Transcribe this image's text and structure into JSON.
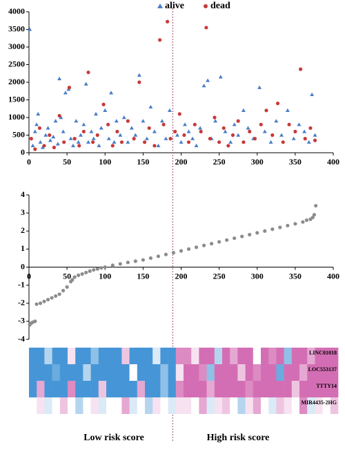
{
  "chart_data": [
    {
      "type": "scatter",
      "xlim": [
        0,
        400
      ],
      "xticks": [
        0,
        50,
        100,
        150,
        200,
        250,
        300,
        350,
        400
      ],
      "ylim": [
        0,
        4000
      ],
      "yticks": [
        0,
        500,
        1000,
        1500,
        2000,
        2500,
        3000,
        3500,
        4000
      ],
      "cutoff": 189,
      "legend": "top",
      "series": [
        {
          "name": "alive",
          "color": "#4a7ec8",
          "marker": "triangle",
          "x": [
            1,
            5,
            8,
            10,
            12,
            15,
            18,
            22,
            25,
            28,
            32,
            35,
            38,
            40,
            42,
            45,
            48,
            52,
            55,
            58,
            62,
            65,
            68,
            72,
            75,
            78,
            82,
            85,
            88,
            92,
            95,
            100,
            105,
            108,
            112,
            115,
            120,
            125,
            130,
            135,
            140,
            145,
            150,
            155,
            160,
            165,
            170,
            175,
            180,
            185,
            195,
            200,
            205,
            210,
            215,
            220,
            225,
            230,
            235,
            240,
            245,
            252,
            258,
            265,
            270,
            275,
            282,
            288,
            295,
            303,
            310,
            318,
            325,
            332,
            340,
            348,
            355,
            362,
            368,
            372,
            376
          ],
          "values": [
            3500,
            200,
            600,
            800,
            1100,
            300,
            150,
            500,
            700,
            350,
            450,
            900,
            250,
            2100,
            1000,
            600,
            1700,
            1800,
            400,
            200,
            900,
            300,
            500,
            800,
            1950,
            300,
            600,
            400,
            1100,
            200,
            700,
            1200,
            400,
            1700,
            300,
            900,
            500,
            1000,
            300,
            700,
            500,
            2200,
            900,
            400,
            1300,
            600,
            200,
            900,
            400,
            1200,
            500,
            300,
            800,
            600,
            400,
            200,
            700,
            1900,
            2050,
            400,
            900,
            2150,
            600,
            300,
            800,
            500,
            1200,
            700,
            400,
            1850,
            600,
            300,
            900,
            500,
            1200,
            400,
            800,
            600,
            300,
            1650,
            500
          ]
        },
        {
          "name": "dead",
          "color": "#c8393a",
          "marker": "circle",
          "x": [
            3,
            8,
            14,
            20,
            27,
            33,
            40,
            46,
            53,
            60,
            66,
            72,
            78,
            84,
            90,
            98,
            104,
            110,
            116,
            122,
            130,
            138,
            145,
            152,
            158,
            165,
            172,
            177,
            182,
            186,
            192,
            198,
            204,
            210,
            218,
            226,
            233,
            238,
            244,
            250,
            256,
            262,
            268,
            275,
            282,
            290,
            297,
            305,
            312,
            320,
            327,
            334,
            342,
            350,
            357,
            363,
            370,
            376
          ],
          "values": [
            400,
            100,
            700,
            200,
            500,
            150,
            1050,
            300,
            1850,
            400,
            200,
            600,
            2280,
            300,
            500,
            1370,
            800,
            200,
            600,
            300,
            900,
            400,
            2000,
            300,
            700,
            200,
            3200,
            800,
            3720,
            400,
            600,
            1100,
            500,
            300,
            800,
            600,
            3550,
            400,
            1000,
            300,
            700,
            200,
            500,
            900,
            300,
            600,
            400,
            800,
            1200,
            500,
            1400,
            300,
            800,
            600,
            2370,
            400,
            700,
            350
          ]
        }
      ]
    },
    {
      "type": "scatter",
      "xlim": [
        0,
        400
      ],
      "xticks": [
        0,
        50,
        100,
        150,
        200,
        250,
        300,
        350,
        400
      ],
      "ylim": [
        -4,
        4
      ],
      "yticks": [
        -4,
        -3,
        -2,
        -1,
        0,
        1,
        2,
        3,
        4
      ],
      "series": [
        {
          "color": "#8c8c8c",
          "x": [
            1,
            3,
            5,
            8,
            10,
            15,
            20,
            25,
            30,
            35,
            40,
            45,
            50,
            55,
            57,
            60,
            65,
            70,
            75,
            80,
            85,
            90,
            95,
            100,
            110,
            120,
            130,
            140,
            150,
            160,
            170,
            180,
            190,
            200,
            210,
            220,
            230,
            240,
            250,
            260,
            270,
            280,
            290,
            300,
            310,
            320,
            330,
            340,
            350,
            360,
            365,
            370,
            373,
            375,
            377
          ],
          "values": [
            -3.2,
            -3.1,
            -3.05,
            -3.0,
            -2.05,
            -2.0,
            -1.9,
            -1.8,
            -1.7,
            -1.6,
            -1.5,
            -1.3,
            -1.1,
            -0.8,
            -0.7,
            -0.55,
            -0.45,
            -0.38,
            -0.3,
            -0.22,
            -0.15,
            -0.1,
            -0.04,
            0.0,
            0.1,
            0.18,
            0.26,
            0.33,
            0.4,
            0.5,
            0.6,
            0.7,
            0.8,
            0.9,
            1.0,
            1.1,
            1.2,
            1.3,
            1.4,
            1.5,
            1.6,
            1.7,
            1.8,
            1.9,
            2.0,
            2.1,
            2.2,
            2.3,
            2.4,
            2.5,
            2.6,
            2.65,
            2.75,
            2.9,
            3.4
          ]
        }
      ]
    },
    {
      "type": "heatmap",
      "annotations": [
        "Low risk score",
        "High risk score"
      ],
      "rows": [
        {
          "name": "LINC01018",
          "values": [
            0,
            0,
            0.3,
            0,
            0,
            0.6,
            0,
            0,
            0.2,
            0,
            0,
            0,
            0.7,
            0,
            0,
            0,
            0.4,
            0,
            0,
            0.9,
            0.9,
            0.6,
            1,
            1,
            0.3,
            1,
            0.8,
            1,
            1,
            0.5,
            1,
            0.9,
            1,
            0.2,
            1,
            1,
            0.8,
            1,
            1,
            1
          ]
        },
        {
          "name": "LOC553137",
          "values": [
            0,
            0,
            0,
            0.1,
            0,
            0,
            0,
            0.3,
            0,
            0,
            0,
            0,
            0,
            0.5,
            0,
            0,
            0,
            0.2,
            0,
            0.6,
            1,
            1,
            0.9,
            0.2,
            1,
            1,
            1,
            0.7,
            1,
            0.9,
            1,
            1,
            0.1,
            1,
            1,
            0.8,
            1,
            1,
            1,
            1
          ]
        },
        {
          "name": "TTTY14",
          "values": [
            0,
            0.8,
            0,
            0,
            0,
            0.9,
            0,
            0,
            0,
            0.7,
            0,
            0,
            0,
            0,
            0.8,
            0,
            0,
            0.2,
            0,
            0.9,
            1,
            1,
            1,
            0.8,
            1,
            1,
            1,
            1,
            0.9,
            1,
            1,
            1,
            1,
            1,
            0.7,
            1,
            1,
            1,
            1,
            1
          ]
        },
        {
          "name": "MIR4435-2HG",
          "values": [
            0.5,
            0.6,
            0.4,
            0.5,
            0.7,
            0.5,
            0.3,
            0.5,
            0.6,
            0.4,
            0.5,
            0.5,
            0.8,
            0.4,
            0.5,
            0.3,
            0.6,
            0.5,
            0.4,
            0.6,
            0.6,
            0.5,
            0.8,
            0.4,
            0.6,
            0.7,
            0.5,
            0.3,
            0.6,
            0.8,
            0.5,
            0.4,
            0.7,
            0.6,
            0.5,
            0.9,
            0.4,
            0.6,
            0.5,
            0.7
          ]
        }
      ]
    }
  ]
}
